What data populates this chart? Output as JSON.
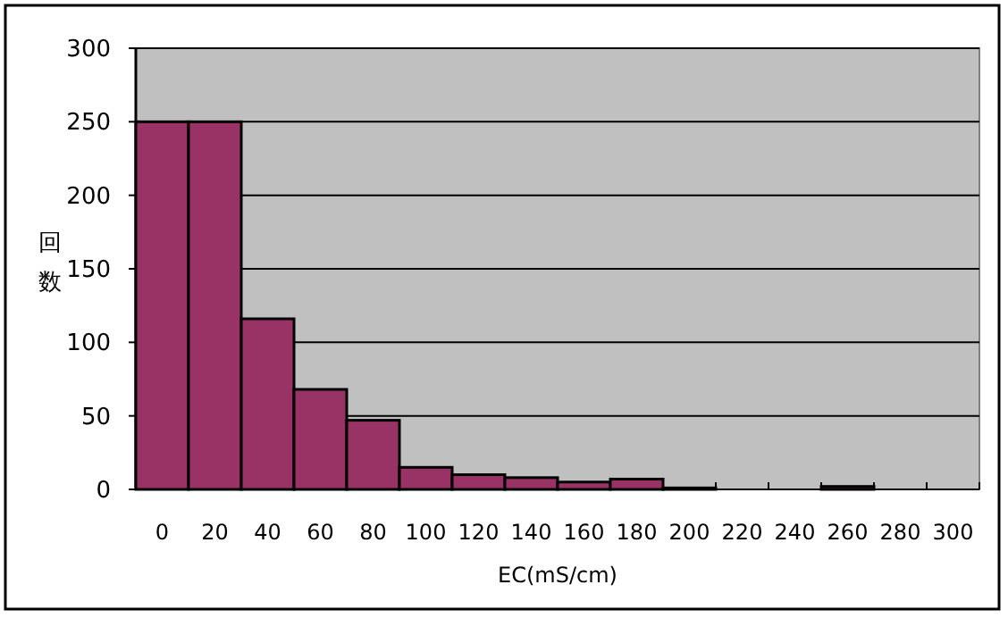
{
  "chart_data": {
    "type": "bar",
    "xlabel": "EC(mS/cm)",
    "ylabel": "回数",
    "categories": [
      "0",
      "20",
      "40",
      "60",
      "80",
      "100",
      "120",
      "140",
      "160",
      "180",
      "200",
      "220",
      "240",
      "260",
      "280",
      "300"
    ],
    "values": [
      250,
      250,
      116,
      68,
      47,
      15,
      10,
      8,
      5,
      7,
      1,
      0,
      0,
      2,
      0,
      0
    ],
    "color": "#993366",
    "ylim": [
      0,
      300
    ],
    "yticks": [
      0,
      50,
      100,
      150,
      200,
      250,
      300
    ],
    "grid": "y"
  }
}
